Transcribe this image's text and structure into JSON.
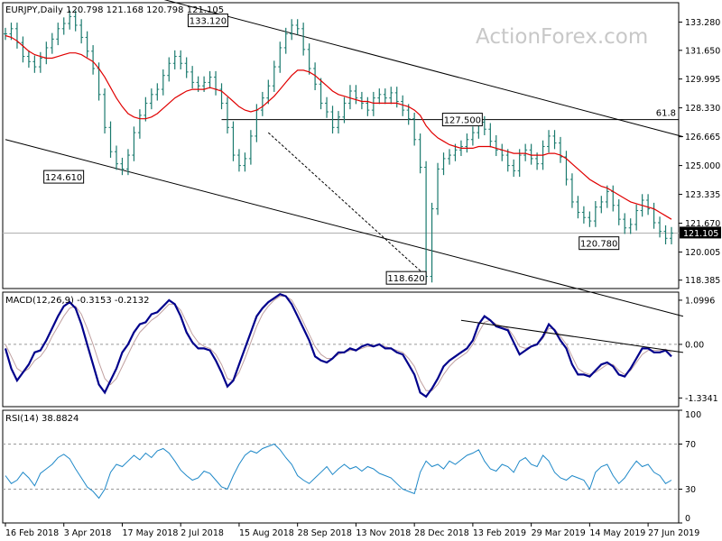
{
  "chart_data": [
    {
      "type": "candlestick",
      "header": "EURJPY,Daily  120.798 121.168 120.798 121.105",
      "watermark": "ActionForex.com",
      "ylim": [
        117.9,
        134.4
      ],
      "y_ticks": [
        "133.280",
        "131.650",
        "129.995",
        "128.330",
        "126.665",
        "125.000",
        "123.335",
        "121.670",
        "120.005",
        "118.385"
      ],
      "y_tick_values": [
        133.28,
        131.65,
        129.995,
        128.33,
        126.665,
        125.0,
        123.335,
        121.67,
        120.005,
        118.385
      ],
      "last_price": "121.105",
      "last_price_value": 121.105,
      "ma_color": "#e00000",
      "series": [
        {
          "values": [
            132.6,
            132.9,
            132.1,
            131.3,
            131.0,
            130.7,
            131.2,
            131.8,
            132.3,
            132.9,
            133.2,
            133.6,
            133.1,
            132.4,
            131.6,
            130.6,
            129.1,
            127.2,
            125.8,
            125.1,
            124.8,
            125.6,
            126.9,
            127.9,
            128.6,
            129.1,
            129.4,
            130.2,
            130.9,
            131.3,
            130.9,
            130.4,
            129.8,
            129.6,
            129.8,
            130.1,
            129.4,
            128.6,
            127.2,
            125.6,
            125.0,
            125.4,
            126.7,
            128.2,
            128.9,
            129.6,
            130.7,
            131.8,
            132.6,
            133.1,
            132.9,
            131.7,
            130.6,
            129.7,
            128.6,
            128.1,
            127.2,
            127.8,
            128.6,
            129.3,
            128.9,
            128.6,
            128.2,
            128.9,
            129.1,
            128.9,
            129.2,
            128.7,
            128.2,
            127.7,
            126.5,
            124.9,
            118.6,
            122.5,
            124.8,
            125.4,
            125.6,
            125.9,
            126.1,
            126.5,
            126.9,
            127.5,
            127.1,
            126.4,
            125.9,
            125.6,
            125.0,
            124.7,
            125.6,
            125.9,
            125.4,
            125.1,
            126.1,
            126.7,
            126.3,
            125.5,
            124.2,
            122.9,
            122.3,
            122.0,
            121.8,
            122.6,
            122.9,
            123.5,
            122.7,
            121.9,
            121.4,
            121.6,
            122.4,
            123.0,
            122.5,
            121.7,
            121.2,
            120.8,
            121.1
          ]
        },
        {
          "values": [
            132.5,
            132.4,
            132.2,
            131.9,
            131.6,
            131.4,
            131.3,
            131.2,
            131.2,
            131.3,
            131.4,
            131.5,
            131.5,
            131.4,
            131.2,
            131.0,
            130.6,
            130.1,
            129.5,
            128.9,
            128.4,
            128.0,
            127.8,
            127.7,
            127.7,
            127.8,
            128.0,
            128.3,
            128.6,
            128.9,
            129.1,
            129.3,
            129.4,
            129.4,
            129.4,
            129.5,
            129.4,
            129.3,
            129.0,
            128.7,
            128.4,
            128.2,
            128.1,
            128.2,
            128.4,
            128.7,
            129.0,
            129.4,
            129.8,
            130.2,
            130.5,
            130.5,
            130.4,
            130.2,
            129.9,
            129.6,
            129.3,
            129.1,
            129.0,
            128.9,
            128.8,
            128.7,
            128.7,
            128.6,
            128.6,
            128.6,
            128.6,
            128.6,
            128.5,
            128.4,
            128.2,
            127.9,
            127.3,
            126.9,
            126.6,
            126.4,
            126.2,
            126.1,
            126.0,
            126.0,
            126.0,
            126.1,
            126.1,
            126.1,
            126.0,
            125.9,
            125.8,
            125.7,
            125.7,
            125.7,
            125.6,
            125.6,
            125.6,
            125.7,
            125.7,
            125.6,
            125.4,
            125.1,
            124.8,
            124.5,
            124.2,
            124.0,
            123.8,
            123.7,
            123.5,
            123.3,
            123.1,
            122.9,
            122.8,
            122.7,
            122.6,
            122.5,
            122.3,
            122.1,
            121.9
          ]
        }
      ],
      "channel_upper": [
        [
          0,
          137.0
        ],
        [
          116,
          126.665
        ]
      ],
      "channel_lower": [
        [
          0,
          126.5
        ],
        [
          116,
          116.3
        ]
      ],
      "horizontal_line": {
        "value": 127.65,
        "from": 37,
        "to": 116
      },
      "fib_label": "61.8",
      "dashed_line": [
        [
          45,
          126.9
        ],
        [
          72,
          118.62
        ]
      ],
      "grey_line_value": 121.1,
      "annotations": [
        {
          "text": "133.120",
          "x": 39,
          "value": 133.12
        },
        {
          "text": "124.610",
          "x": 14,
          "value": 124.61
        },
        {
          "text": "118.620",
          "x": 72,
          "value": 118.62
        },
        {
          "text": "127.500",
          "x": 81,
          "value": 127.5
        },
        {
          "text": "120.780",
          "x": 105,
          "value": 120.78
        }
      ]
    },
    {
      "type": "line",
      "header": "MACD(12,26,9) -0.3153 -0.2132",
      "ylim": [
        -1.55,
        1.3
      ],
      "y_ticks": [
        "1.0996",
        "0.00",
        "-1.3341"
      ],
      "y_tick_values": [
        1.0996,
        0.0,
        -1.3341
      ],
      "series": [
        {
          "values": [
            -0.1,
            -0.6,
            -0.9,
            -0.7,
            -0.5,
            -0.2,
            -0.15,
            0.1,
            0.4,
            0.7,
            0.95,
            1.05,
            0.9,
            0.5,
            0.0,
            -0.5,
            -1.0,
            -1.2,
            -0.9,
            -0.6,
            -0.2,
            0.0,
            0.3,
            0.5,
            0.55,
            0.75,
            0.8,
            0.95,
            1.1,
            1.0,
            0.7,
            0.3,
            0.05,
            -0.1,
            -0.1,
            -0.15,
            -0.4,
            -0.7,
            -1.05,
            -0.9,
            -0.5,
            -0.1,
            0.3,
            0.7,
            0.9,
            1.05,
            1.15,
            1.25,
            1.2,
            1.0,
            0.7,
            0.4,
            0.1,
            -0.3,
            -0.4,
            -0.45,
            -0.35,
            -0.2,
            -0.2,
            -0.1,
            -0.15,
            -0.05,
            0.0,
            -0.05,
            0.0,
            -0.1,
            -0.1,
            -0.2,
            -0.25,
            -0.5,
            -0.75,
            -1.2,
            -1.3,
            -1.1,
            -0.85,
            -0.55,
            -0.4,
            -0.3,
            -0.2,
            -0.1,
            0.1,
            0.5,
            0.7,
            0.6,
            0.45,
            0.4,
            0.35,
            0.05,
            -0.25,
            -0.15,
            -0.05,
            0.0,
            0.2,
            0.5,
            0.35,
            0.1,
            -0.1,
            -0.5,
            -0.75,
            -0.75,
            -0.8,
            -0.65,
            -0.5,
            -0.45,
            -0.55,
            -0.75,
            -0.8,
            -0.6,
            -0.35,
            -0.1,
            -0.1,
            -0.2,
            -0.2,
            -0.15,
            -0.3
          ]
        },
        {
          "values": [
            0.0,
            -0.3,
            -0.6,
            -0.7,
            -0.6,
            -0.4,
            -0.3,
            -0.1,
            0.2,
            0.45,
            0.7,
            0.9,
            0.95,
            0.75,
            0.4,
            0.0,
            -0.45,
            -0.85,
            -1.0,
            -0.85,
            -0.55,
            -0.25,
            0.05,
            0.3,
            0.45,
            0.6,
            0.7,
            0.85,
            1.0,
            1.0,
            0.85,
            0.55,
            0.25,
            0.05,
            -0.05,
            -0.1,
            -0.25,
            -0.5,
            -0.85,
            -0.9,
            -0.7,
            -0.35,
            0.05,
            0.45,
            0.75,
            0.95,
            1.1,
            1.2,
            1.2,
            1.1,
            0.85,
            0.55,
            0.25,
            -0.05,
            -0.25,
            -0.35,
            -0.35,
            -0.25,
            -0.2,
            -0.15,
            -0.15,
            -0.1,
            -0.05,
            -0.05,
            -0.02,
            -0.05,
            -0.1,
            -0.15,
            -0.2,
            -0.35,
            -0.55,
            -0.9,
            -1.15,
            -1.15,
            -1.0,
            -0.75,
            -0.55,
            -0.4,
            -0.3,
            -0.2,
            0.0,
            0.3,
            0.55,
            0.6,
            0.5,
            0.45,
            0.4,
            0.2,
            -0.05,
            -0.1,
            -0.05,
            0.0,
            0.15,
            0.4,
            0.38,
            0.2,
            0.0,
            -0.3,
            -0.6,
            -0.7,
            -0.75,
            -0.7,
            -0.6,
            -0.5,
            -0.5,
            -0.65,
            -0.75,
            -0.65,
            -0.45,
            -0.25,
            -0.15,
            -0.15,
            -0.15,
            -0.12,
            -0.2
          ]
        }
      ],
      "trendline": [
        [
          78,
          0.6
        ],
        [
          116,
          -0.2
        ]
      ]
    },
    {
      "type": "line",
      "header": "RSI(14) 38.8824",
      "ylim": [
        0,
        100
      ],
      "y_ticks": [
        "100",
        "70",
        "30",
        "0"
      ],
      "y_tick_values": [
        100,
        70,
        30,
        0
      ],
      "levels": [
        70,
        30
      ],
      "series": [
        {
          "values": [
            42,
            35,
            38,
            45,
            40,
            33,
            44,
            48,
            52,
            58,
            61,
            57,
            48,
            40,
            32,
            28,
            22,
            30,
            45,
            52,
            50,
            55,
            60,
            56,
            62,
            58,
            64,
            66,
            62,
            55,
            47,
            42,
            38,
            40,
            46,
            44,
            38,
            32,
            30,
            42,
            52,
            60,
            64,
            62,
            66,
            68,
            70,
            65,
            58,
            52,
            42,
            38,
            35,
            40,
            45,
            50,
            43,
            48,
            52,
            48,
            50,
            46,
            50,
            48,
            44,
            42,
            40,
            35,
            30,
            28,
            26,
            45,
            55,
            50,
            52,
            48,
            55,
            52,
            56,
            60,
            62,
            65,
            55,
            48,
            46,
            52,
            50,
            45,
            55,
            58,
            52,
            50,
            60,
            55,
            45,
            40,
            38,
            42,
            40,
            38,
            30,
            45,
            50,
            52,
            42,
            35,
            40,
            48,
            55,
            50,
            52,
            45,
            42,
            35,
            38
          ]
        }
      ],
      "x_tick_labels": [
        "16 Feb 2018",
        "3 Apr 2018",
        "17 May 2018",
        "2 Jul 2018",
        "15 Aug 2018",
        "28 Sep 2018",
        "13 Nov 2018",
        "28 Dec 2018",
        "13 Feb 2019",
        "29 Mar 2019",
        "14 May 2019",
        "27 Jun 2019"
      ]
    }
  ]
}
